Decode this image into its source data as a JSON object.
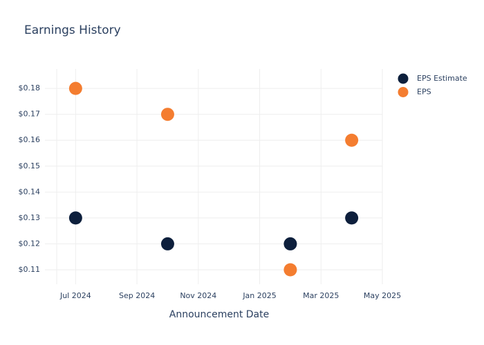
{
  "chart_data": {
    "type": "scatter",
    "title": "Earnings History",
    "x_label": "Announcement Date",
    "x": [
      "2024-07",
      "2024-10",
      "2025-02",
      "2025-04"
    ],
    "series": [
      {
        "name": "EPS Estimate",
        "color": "#0d1f3c",
        "values": [
          0.13,
          0.12,
          0.12,
          0.13
        ]
      },
      {
        "name": "EPS",
        "color": "#f47d30",
        "values": [
          0.18,
          0.17,
          0.11,
          0.16
        ]
      }
    ],
    "xlim": [
      "2024-06",
      "2025-05"
    ],
    "xticks": [
      {
        "value": "2024-07",
        "label": "Jul 2024"
      },
      {
        "value": "2024-09",
        "label": "Sep 2024"
      },
      {
        "value": "2024-11",
        "label": "Nov 2024"
      },
      {
        "value": "2025-01",
        "label": "Jan 2025"
      },
      {
        "value": "2025-03",
        "label": "Mar 2025"
      },
      {
        "value": "2025-05",
        "label": "May 2025"
      }
    ],
    "ylim": [
      0.1044,
      0.1875
    ],
    "yticks": [
      {
        "value": 0.11,
        "label": "$0.11"
      },
      {
        "value": 0.12,
        "label": "$0.12"
      },
      {
        "value": 0.13,
        "label": "$0.13"
      },
      {
        "value": 0.14,
        "label": "$0.14"
      },
      {
        "value": 0.15,
        "label": "$0.15"
      },
      {
        "value": 0.16,
        "label": "$0.16"
      },
      {
        "value": 0.17,
        "label": "$0.17"
      },
      {
        "value": 0.18,
        "label": "$0.18"
      }
    ],
    "grid": true,
    "legend": "top-right"
  }
}
